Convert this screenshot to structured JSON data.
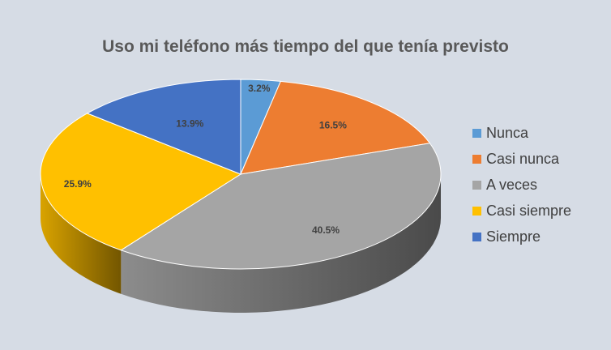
{
  "chart_data": {
    "type": "pie",
    "title": "Uso mi teléfono más tiempo del que tenía previsto",
    "categories": [
      "Nunca",
      "Casi nunca",
      "A veces",
      "Casi siempre",
      "Siempre"
    ],
    "values": [
      3.2,
      16.5,
      40.5,
      25.9,
      13.9
    ],
    "data_labels": [
      "3.2%",
      "16.5%",
      "40.5%",
      "25.9%",
      "13.9%"
    ],
    "colors": [
      "#5b9bd5",
      "#ed7d31",
      "#a5a5a5",
      "#ffc000",
      "#4472c4"
    ],
    "legend_position": "right",
    "style": "3d"
  }
}
